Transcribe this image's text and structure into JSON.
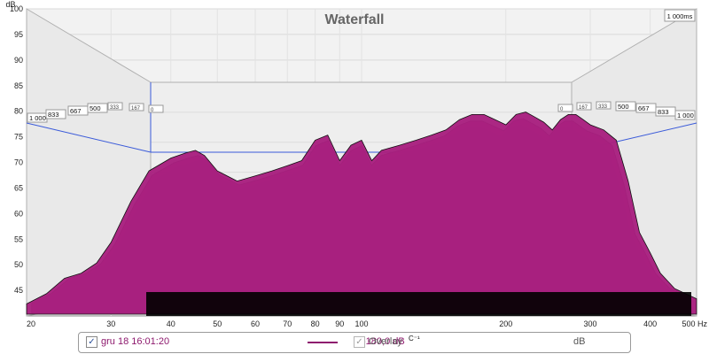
{
  "chart_data": {
    "type": "area",
    "title": "Waterfall",
    "ylabel": "dB",
    "xlabel": "Hz",
    "x_scale": "log",
    "xlim": [
      20,
      500
    ],
    "ylim": [
      40,
      100
    ],
    "y_ticks": [
      "45",
      "50",
      "55",
      "60",
      "65",
      "70",
      "75",
      "80",
      "85",
      "90",
      "95",
      "100"
    ],
    "x_ticks": [
      "20",
      "30",
      "40",
      "50",
      "60",
      "70",
      "80",
      "90",
      "100",
      "200",
      "300",
      "400",
      "500 Hz"
    ],
    "time_label_top": "1 000ms",
    "time_tags_left": [
      "1 000",
      "833",
      "667",
      "500",
      "333",
      "167",
      "0"
    ],
    "time_tags_right": [
      "0",
      "167",
      "333",
      "500",
      "667",
      "833",
      "1 000"
    ],
    "time_slices_ms": [
      0,
      167,
      333,
      500,
      667,
      833,
      1000
    ],
    "fill_color": "#a8207f",
    "edge_color": "#111111",
    "floor_color": "#000000",
    "series": [
      {
        "x": [
          20,
          22,
          24,
          26,
          28,
          30,
          33,
          36,
          40,
          43,
          45,
          47,
          50,
          55,
          60,
          65,
          70,
          75,
          80,
          85,
          90,
          95,
          100,
          105,
          110,
          120,
          130,
          140,
          150,
          160,
          170,
          180,
          190,
          200,
          210,
          220,
          230,
          240,
          250,
          260,
          270,
          280,
          290,
          300,
          320,
          340,
          360,
          380,
          400,
          420,
          450,
          500
        ],
        "y": [
          42,
          44,
          47,
          48,
          50,
          54,
          62,
          68,
          70.5,
          71.5,
          72,
          71,
          68,
          66,
          67,
          68,
          69,
          70,
          74,
          75,
          70,
          73,
          74,
          70,
          72,
          73,
          74,
          75,
          76,
          78,
          79,
          79,
          78,
          77,
          79,
          79.5,
          78.5,
          77.5,
          76,
          78,
          79,
          79,
          78,
          77,
          76,
          74,
          66,
          56,
          52,
          48,
          45,
          43
        ]
      }
    ]
  },
  "legend": {
    "trace_checked": "✓",
    "trace_name": "gru 18 16:01:20",
    "trace_value": "-180,0 dB",
    "trace_sup": "C⁻¹",
    "overlay_checked": "✓",
    "overlay_label": "Overlay",
    "unit": "dB"
  }
}
